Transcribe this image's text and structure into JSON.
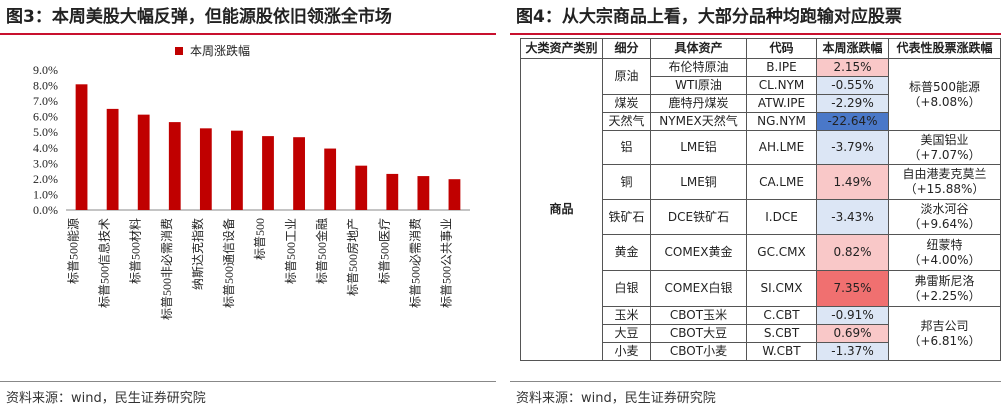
{
  "left_panel": {
    "title": "图3：本周美股大幅反弹，但能源股依旧领涨全市场",
    "source": "资料来源：wind，民生证券研究院"
  },
  "right_panel": {
    "title": "图4：从大宗商品上看，大部分品种均跑输对应股票",
    "source": "资料来源：wind，民生证券研究院",
    "table": {
      "headers": [
        "大类资产类别",
        "细分",
        "具体资产",
        "代码",
        "本周涨跌幅",
        "代表性股票涨跌幅"
      ],
      "category": "商品",
      "rows": [
        {
          "sub": "原油",
          "asset": "布伦特原油",
          "code": "B.IPE",
          "change": "2.15%",
          "tone": "pos"
        },
        {
          "sub": "",
          "asset": "WTI原油",
          "code": "CL.NYM",
          "change": "-0.55%",
          "tone": "neg"
        },
        {
          "sub": "煤炭",
          "asset": "鹿特丹煤炭",
          "code": "ATW.IPE",
          "change": "-2.29%",
          "tone": "neg"
        },
        {
          "sub": "天然气",
          "asset": "NYMEX天然气",
          "code": "NG.NYM",
          "change": "-22.64%",
          "tone": "neg-strong"
        },
        {
          "sub": "铝",
          "asset": "LME铝",
          "code": "AH.LME",
          "change": "-3.79%",
          "tone": "neg"
        },
        {
          "sub": "铜",
          "asset": "LME铜",
          "code": "CA.LME",
          "change": "1.49%",
          "tone": "pos"
        },
        {
          "sub": "铁矿石",
          "asset": "DCE铁矿石",
          "code": "I.DCE",
          "change": "-3.43%",
          "tone": "neg"
        },
        {
          "sub": "黄金",
          "asset": "COMEX黄金",
          "code": "GC.CMX",
          "change": "0.82%",
          "tone": "pos"
        },
        {
          "sub": "白银",
          "asset": "COMEX白银",
          "code": "SI.CMX",
          "change": "7.35%",
          "tone": "pos-strong"
        },
        {
          "sub": "玉米",
          "asset": "CBOT玉米",
          "code": "C.CBT",
          "change": "-0.91%",
          "tone": "neg"
        },
        {
          "sub": "大豆",
          "asset": "CBOT大豆",
          "code": "S.CBT",
          "change": "0.69%",
          "tone": "pos"
        },
        {
          "sub": "小麦",
          "asset": "CBOT小麦",
          "code": "W.CBT",
          "change": "-1.37%",
          "tone": "neg"
        }
      ],
      "stocks": [
        {
          "name": "标普500能源",
          "change": "（+8.08%）"
        },
        {
          "name": "美国铝业",
          "change": "（+7.07%）"
        },
        {
          "name": "自由港麦克莫兰",
          "change": "（+15.88%）"
        },
        {
          "name": "淡水河谷",
          "change": "（+9.64%）"
        },
        {
          "name": "纽蒙特",
          "change": "（+4.00%）"
        },
        {
          "name": "弗雷斯尼洛",
          "change": "（+2.25%）"
        },
        {
          "name": "邦吉公司",
          "change": "（+6.81%）"
        }
      ]
    }
  },
  "chart_data": {
    "type": "bar",
    "title": "",
    "xlabel": "",
    "ylabel": "",
    "categories": [
      "标普500能源",
      "标普500信息技术",
      "标普500材料",
      "标普500非必需消费",
      "纳斯达克指数",
      "标普500通信设备",
      "标普500",
      "标普500工业",
      "标普500金融",
      "标普500房地产",
      "标普500医疗",
      "标普500必需消费",
      "标普500公共事业"
    ],
    "series": [
      {
        "name": "本周涨跌幅",
        "values": [
          0.0808,
          0.065,
          0.0613,
          0.0565,
          0.0525,
          0.051,
          0.0475,
          0.0468,
          0.0395,
          0.0285,
          0.0232,
          0.0218,
          0.0198
        ],
        "color": "#c00000"
      }
    ],
    "ylim": [
      0,
      0.09
    ],
    "yticks": [
      "0.0%",
      "1.0%",
      "2.0%",
      "3.0%",
      "4.0%",
      "5.0%",
      "6.0%",
      "7.0%",
      "8.0%",
      "9.0%"
    ],
    "legend": "top-center",
    "grid": false
  }
}
